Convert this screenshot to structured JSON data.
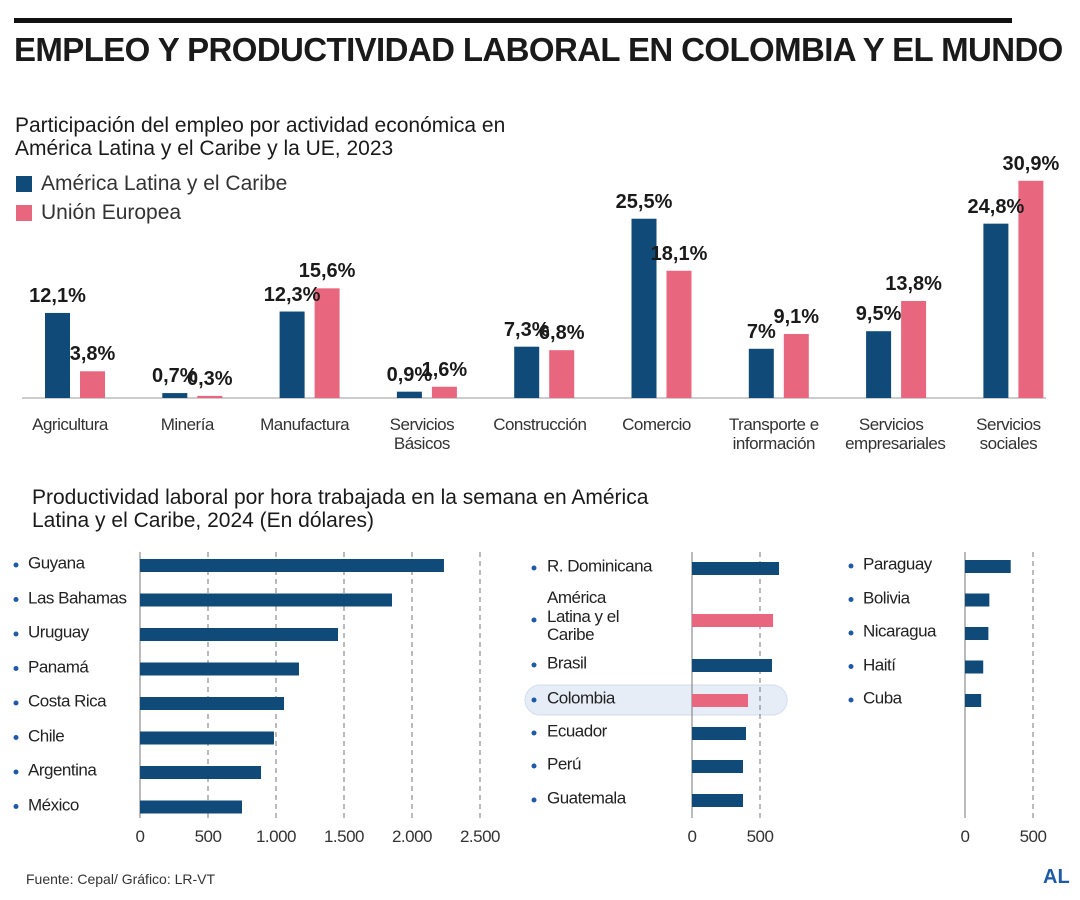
{
  "title": "EMPLEO Y PRODUCTIVIDAD LABORAL EN COLOMBIA Y EL MUNDO",
  "source": "Fuente: Cepal/ Gráfico: LR-VT",
  "logo": "AL",
  "chart_data": [
    {
      "type": "bar",
      "title": "Participación del empleo por actividad económica en América Latina y el Caribe y la UE, 2023",
      "categories": [
        "Agricultura",
        "Minería",
        "Manufactura",
        "Servicios Básicos",
        "Construcción",
        "Comercio",
        "Transporte e información",
        "Servicios empresariales",
        "Servicios sociales"
      ],
      "series": [
        {
          "name": "América Latina y el Caribe",
          "color": "#0f4a78",
          "values": [
            12.1,
            0.7,
            12.3,
            0.9,
            7.3,
            25.5,
            7,
            9.5,
            24.8
          ],
          "value_labels": [
            "12,1%",
            "0,7%",
            "12,3%",
            "0,9%",
            "7,3%",
            "25,5%",
            "7%",
            "9,5%",
            "24,8%"
          ]
        },
        {
          "name": "Unión Europea",
          "color": "#e8677e",
          "values": [
            3.8,
            0.3,
            15.6,
            1.6,
            6.8,
            18.1,
            9.1,
            13.8,
            30.9
          ],
          "value_labels": [
            "3,8%",
            "0,3%",
            "15,6%",
            "1,6%",
            "6,8%",
            "18,1%",
            "9,1%",
            "13,8%",
            "30,9%"
          ]
        }
      ]
    },
    {
      "type": "barh",
      "title": "Productividad laboral por hora trabajada en la semana en América Latina y el Caribe, 2024 (En dólares)",
      "panels": [
        {
          "categories": [
            "Guyana",
            "Las Bahamas",
            "Uruguay",
            "Panamá",
            "Costa Rica",
            "Chile",
            "Argentina",
            "México"
          ],
          "values": [
            2235,
            1853,
            1456,
            1169,
            1059,
            985,
            890,
            750
          ],
          "colors": [
            "#0f4a78",
            "#0f4a78",
            "#0f4a78",
            "#0f4a78",
            "#0f4a78",
            "#0f4a78",
            "#0f4a78",
            "#0f4a78"
          ],
          "xlim": [
            0,
            2500
          ],
          "xticks": [
            0,
            500,
            {
              "value": 1000,
              "label": "1.000"
            },
            {
              "value": 1500,
              "label": "1.500"
            },
            {
              "value": 2000,
              "label": "2.000"
            },
            {
              "value": 2500,
              "label": "2.500"
            }
          ]
        },
        {
          "categories": [
            "R. Dominicana",
            "América Latina y el Caribe",
            "Brasil",
            "Colombia",
            "Ecuador",
            "Perú",
            "Guatemala"
          ],
          "values": [
            640,
            596,
            588,
            412,
            397,
            375,
            375
          ],
          "colors": [
            "#0f4a78",
            "#e8677e",
            "#0f4a78",
            "#e8677e",
            "#0f4a78",
            "#0f4a78",
            "#0f4a78"
          ],
          "highlight": 3,
          "xlim": [
            0,
            700
          ],
          "xticks": [
            0,
            500
          ]
        },
        {
          "categories": [
            "Paraguay",
            "Bolivia",
            "Nicaragua",
            "Haití",
            "Cuba"
          ],
          "values": [
            336,
            179,
            172,
            134,
            119
          ],
          "colors": [
            "#0f4a78",
            "#0f4a78",
            "#0f4a78",
            "#0f4a78",
            "#0f4a78"
          ],
          "xlim": [
            0,
            700
          ],
          "xticks": [
            0,
            500
          ]
        }
      ]
    }
  ]
}
